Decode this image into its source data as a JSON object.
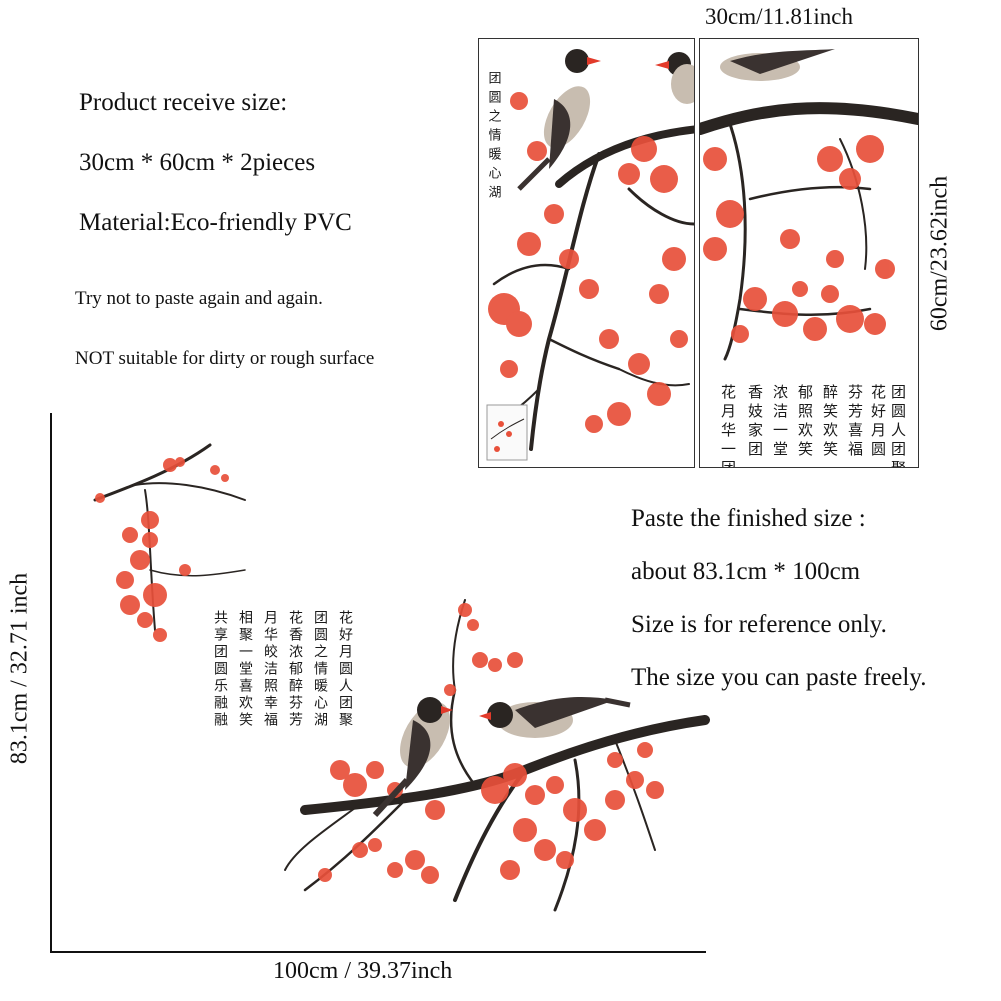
{
  "info": {
    "receive_size_label": "Product receive size:",
    "receive_size_value": "30cm * 60cm * 2pieces",
    "material": "Material:Eco-friendly PVC",
    "note_paste": "Try not to paste again and again.",
    "note_surface": "NOT suitable for dirty or rough surface"
  },
  "panels": {
    "width_label": "30cm/11.81inch",
    "height_label": "60cm/23.62inch",
    "left_panel_poem": "团圆之情暖心湖",
    "right_panel_poem_cols": [
      "团圆人团聚",
      "花好月圆",
      "芬芳喜福",
      "醉笑欢笑",
      "郁照欢笑",
      "浓洁一堂",
      "香妓家团",
      "花月华一团"
    ]
  },
  "finished": {
    "label": "Paste the finished size :",
    "value": "about 83.1cm * 100cm",
    "ref_note": "Size is for reference only.",
    "free_note": "The size you can paste freely.",
    "height_label": "83.1cm / 32.71 inch",
    "width_label": "100cm / 39.37inch",
    "poem_cols": [
      "花好月圆人团聚",
      "团圆之情暖心湖",
      "花香浓郁醉芬芳",
      "月华皎洁照幸福",
      "相聚一堂喜欢笑",
      "共享团圆乐融融"
    ]
  },
  "colors": {
    "blossom": "#e8503a",
    "blossom_light": "#f08a70",
    "branch": "#2a2522",
    "bird_body": "#c8bdb0",
    "bird_wing": "#3a3230",
    "beak": "#e23a2a"
  }
}
